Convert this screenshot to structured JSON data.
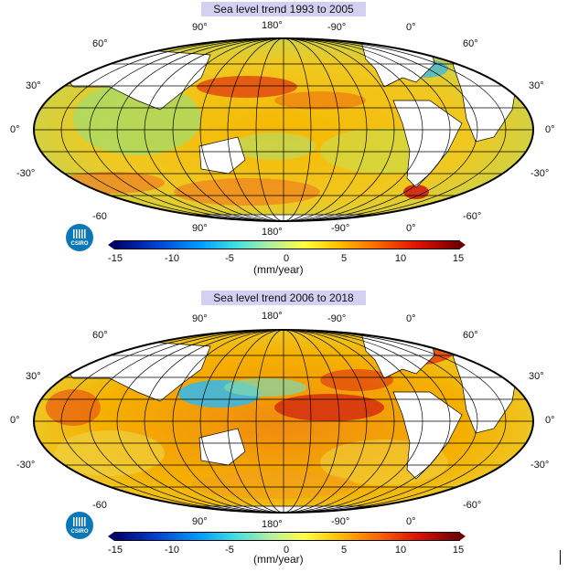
{
  "panels": [
    {
      "title": "Sea level trend 1993 to 2005",
      "top_longitudes": [
        "90°",
        "180°",
        "-90°",
        "0°"
      ],
      "bottom_longitudes": [
        "90°",
        "180°",
        "-90°",
        "0°"
      ],
      "left_latitudes": [
        "60°",
        "30°",
        "0°",
        "-30°",
        "-60"
      ],
      "right_latitudes": [
        "60°",
        "30°",
        "0°",
        "-30°",
        "-60°"
      ],
      "logo_text": "CSIRO",
      "colorbar_ticks": [
        "-15",
        "-10",
        "-5",
        "0",
        "5",
        "10",
        "15"
      ],
      "colorbar_units": "(mm/year)"
    },
    {
      "title": "Sea level trend 2006 to 2018",
      "top_longitudes": [
        "90°",
        "180°",
        "-90°",
        "0°"
      ],
      "bottom_longitudes": [
        "90°",
        "180°",
        "-90°",
        "0°"
      ],
      "left_latitudes": [
        "60°",
        "30°",
        "0°",
        "-30°",
        "-60"
      ],
      "right_latitudes": [
        "60°",
        "30°",
        "0°",
        "-30°",
        "-60°"
      ],
      "logo_text": "CSIRO",
      "colorbar_ticks": [
        "-15",
        "-10",
        "-5",
        "0",
        "5",
        "10",
        "15"
      ],
      "colorbar_units": "(mm/year)"
    }
  ],
  "colors": {
    "title_bg": "#d3d1f2",
    "ocean_base": "#f5c400",
    "land": "#ffffff",
    "logo": "#0a77b7"
  }
}
